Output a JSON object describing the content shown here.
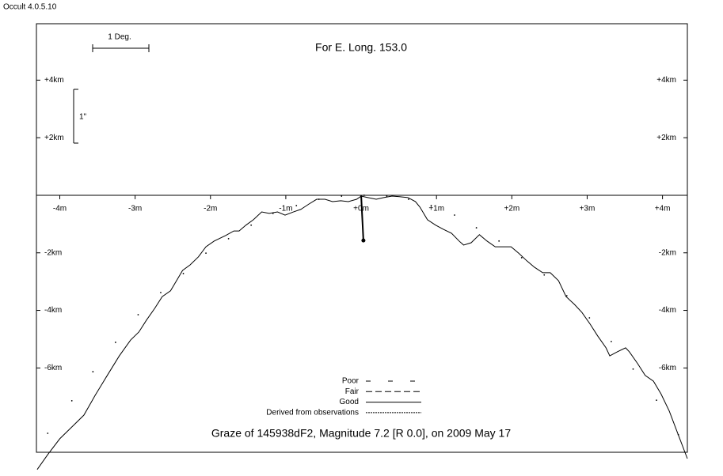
{
  "app_label": "Occult 4.0.5.10",
  "chart_data": {
    "type": "line",
    "title": "For E. Long. 153.0",
    "footer": "Graze of  145938dF2,  Magnitude 7.2 [R 0.0],  on 2009 May 17",
    "scale_x_label": "1 Deg.",
    "scale_y_label": "1\"",
    "xlim": [
      -4.31,
      4.33
    ],
    "ylim": [
      -8.93,
      5.96
    ],
    "xticks": [
      {
        "value": -4,
        "label": "-4m"
      },
      {
        "value": -3,
        "label": "-3m"
      },
      {
        "value": -2,
        "label": "-2m"
      },
      {
        "value": -1,
        "label": "-1m"
      },
      {
        "value": 0,
        "label": "+0m"
      },
      {
        "value": 1,
        "label": "+1m"
      },
      {
        "value": 2,
        "label": "+2m"
      },
      {
        "value": 3,
        "label": "+3m"
      },
      {
        "value": 4,
        "label": "+4m"
      }
    ],
    "yticks": [
      {
        "value": 4,
        "label": "+4km"
      },
      {
        "value": 2,
        "label": "+2km"
      },
      {
        "value": -2,
        "label": "-2km"
      },
      {
        "value": -4,
        "label": "-4km"
      },
      {
        "value": -6,
        "label": "-6km"
      }
    ],
    "series": [
      {
        "style": "solid",
        "color": "#000000",
        "x": [
          -4.3,
          -4.16,
          -4.0,
          -3.84,
          -3.68,
          -3.53,
          -3.37,
          -3.21,
          -3.06,
          -2.95,
          -2.85,
          -2.74,
          -2.64,
          -2.53,
          -2.48,
          -2.37,
          -2.27,
          -2.16,
          -2.06,
          -1.95,
          -1.8,
          -1.69,
          -1.62,
          -1.53,
          -1.43,
          -1.32,
          -1.22,
          -1.11,
          -1.01,
          -0.9,
          -0.8,
          -0.69,
          -0.59,
          -0.48,
          -0.38,
          -0.27,
          -0.17,
          -0.06,
          0.0,
          0.09,
          0.2,
          0.3,
          0.41,
          0.51,
          0.62,
          0.72,
          0.78,
          0.88,
          0.99,
          1.09,
          1.2,
          1.3,
          1.36,
          1.46,
          1.57,
          1.67,
          1.78,
          1.88,
          1.99,
          2.09,
          2.2,
          2.3,
          2.41,
          2.51,
          2.62,
          2.72,
          2.83,
          2.93,
          3.04,
          3.14,
          3.25,
          3.3,
          3.4,
          3.51,
          3.56,
          3.67,
          3.77,
          3.88,
          3.98,
          4.09,
          4.19,
          4.33
        ],
        "values": [
          -9.53,
          -9.01,
          -8.46,
          -8.05,
          -7.64,
          -6.95,
          -6.26,
          -5.58,
          -5.03,
          -4.75,
          -4.34,
          -3.93,
          -3.52,
          -3.32,
          -3.1,
          -2.61,
          -2.42,
          -2.14,
          -1.79,
          -1.59,
          -1.4,
          -1.24,
          -1.24,
          -1.04,
          -0.85,
          -0.58,
          -0.63,
          -0.58,
          -0.69,
          -0.58,
          -0.49,
          -0.3,
          -0.14,
          -0.14,
          -0.22,
          -0.19,
          -0.22,
          -0.14,
          -0.03,
          -0.08,
          -0.14,
          -0.08,
          -0.03,
          -0.05,
          -0.08,
          -0.22,
          -0.41,
          -0.85,
          -1.04,
          -1.18,
          -1.32,
          -1.59,
          -1.73,
          -1.65,
          -1.37,
          -1.59,
          -1.79,
          -1.79,
          -1.79,
          -2.01,
          -2.28,
          -2.5,
          -2.69,
          -2.69,
          -2.97,
          -3.52,
          -3.79,
          -4.07,
          -4.48,
          -4.89,
          -5.3,
          -5.58,
          -5.44,
          -5.3,
          -5.44,
          -5.85,
          -6.26,
          -6.46,
          -6.9,
          -7.5,
          -8.19,
          -9.15
        ]
      },
      {
        "style": "dots",
        "color": "#000000",
        "x": [
          -4.16,
          -3.84,
          -3.56,
          -3.26,
          -2.96,
          -2.66,
          -2.36,
          -2.06,
          -1.76,
          -1.46,
          -1.17,
          -0.86,
          -0.56,
          -0.26,
          0.04,
          0.34,
          0.63,
          0.93,
          1.24,
          1.53,
          1.83,
          2.13,
          2.43,
          2.73,
          3.03,
          3.32,
          3.61,
          3.92,
          4.21
        ],
        "values": [
          -8.27,
          -7.14,
          -6.13,
          -5.11,
          -4.15,
          -3.38,
          -2.72,
          -2.01,
          -1.51,
          -1.04,
          -0.63,
          -0.36,
          -0.14,
          -0.03,
          0.0,
          -0.03,
          -0.14,
          -0.36,
          -0.69,
          -1.13,
          -1.59,
          -2.17,
          -2.77,
          -3.49,
          -4.26,
          -5.08,
          -6.04,
          -7.12,
          -8.32
        ]
      }
    ],
    "star_path": {
      "x": [
        0.0,
        0.03
      ],
      "y": [
        0,
        -1.57
      ]
    },
    "legend": [
      {
        "label": "Poor",
        "style": "sparse-dash"
      },
      {
        "label": "Fair",
        "style": "dash"
      },
      {
        "label": "Good",
        "style": "solid"
      },
      {
        "label": "Derived from observations",
        "style": "dot"
      }
    ]
  }
}
